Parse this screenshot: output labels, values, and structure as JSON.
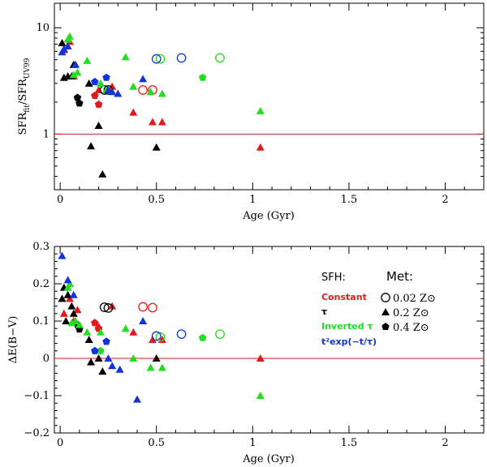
{
  "colors": {
    "constant": "#e31a1c",
    "tau": "#000000",
    "inverted_tau": "#22dd22",
    "t2exp": "#1133dd",
    "reference_line": "#e31a1c"
  },
  "legend": {
    "sfh_title": "SFH:",
    "met_title": "Met:",
    "sfh_entries": [
      {
        "label": "Constant",
        "series": "constant"
      },
      {
        "label": "τ",
        "series": "tau"
      },
      {
        "label": "Inverted τ",
        "series": "inverted_tau"
      },
      {
        "label": "t²exp(−t/τ)",
        "series": "t2exp"
      }
    ],
    "met_entries": [
      {
        "value": "0.02",
        "unit": "Z⊙",
        "marker": "circle"
      },
      {
        "value": "0.2",
        "unit": "Z⊙",
        "marker": "triangle"
      },
      {
        "value": "0.4",
        "unit": "Z⊙",
        "marker": "pentagon"
      }
    ]
  },
  "chart_data": [
    {
      "type": "scatter",
      "yscale": "log",
      "xlabel": "Age (Gyr)",
      "ylabel_main": "SFR",
      "ylabel_sub1": "fit",
      "ylabel_mid": "/SFR",
      "ylabel_sub2": "UV99",
      "xlim": [
        -0.03,
        2.2
      ],
      "ylim": [
        0.3,
        17
      ],
      "xticks": [
        0,
        0.5,
        1,
        1.5,
        2
      ],
      "xtick_labels": [
        "0",
        "0.5",
        "1",
        "1.5",
        "2"
      ],
      "yticks": [
        1,
        10
      ],
      "ytick_labels": [
        "1",
        "10"
      ],
      "reference_y": 1,
      "series": [
        {
          "name": "constant",
          "marker": "circle",
          "points": [
            [
              0.43,
              2.6
            ],
            [
              0.48,
              2.6
            ]
          ]
        },
        {
          "name": "constant",
          "marker": "triangle",
          "points": [
            [
              0.02,
              6.2
            ],
            [
              0.05,
              7.4
            ],
            [
              0.07,
              3.5
            ],
            [
              0.2,
              2.6
            ],
            [
              0.27,
              2.8
            ],
            [
              0.38,
              1.6
            ],
            [
              0.48,
              1.3
            ],
            [
              0.53,
              1.3
            ],
            [
              1.04,
              0.75
            ]
          ]
        },
        {
          "name": "constant",
          "marker": "pentagon",
          "points": [
            [
              0.18,
              2.3
            ],
            [
              0.2,
              1.9
            ]
          ]
        },
        {
          "name": "tau",
          "marker": "circle",
          "points": [
            [
              0.23,
              2.6
            ],
            [
              0.25,
              2.6
            ]
          ]
        },
        {
          "name": "tau",
          "marker": "triangle",
          "points": [
            [
              0.01,
              7.2
            ],
            [
              0.02,
              3.4
            ],
            [
              0.04,
              3.5
            ],
            [
              0.06,
              3.5
            ],
            [
              0.07,
              4.5
            ],
            [
              0.15,
              3.0
            ],
            [
              0.16,
              0.77
            ],
            [
              0.2,
              1.2
            ],
            [
              0.22,
              0.42
            ],
            [
              0.5,
              0.75
            ]
          ]
        },
        {
          "name": "tau",
          "marker": "pentagon",
          "points": [
            [
              0.09,
              2.2
            ],
            [
              0.1,
              1.95
            ]
          ]
        },
        {
          "name": "inverted_tau",
          "marker": "circle",
          "points": [
            [
              0.52,
              5.1
            ],
            [
              0.83,
              5.2
            ]
          ]
        },
        {
          "name": "inverted_tau",
          "marker": "triangle",
          "points": [
            [
              0.04,
              7.8
            ],
            [
              0.05,
              8.3
            ],
            [
              0.07,
              3.6
            ],
            [
              0.09,
              3.8
            ],
            [
              0.14,
              4.9
            ],
            [
              0.21,
              3.0
            ],
            [
              0.24,
              2.6
            ],
            [
              0.34,
              5.3
            ],
            [
              0.38,
              2.8
            ],
            [
              0.47,
              2.5
            ],
            [
              0.53,
              2.4
            ],
            [
              1.04,
              1.65
            ]
          ]
        },
        {
          "name": "inverted_tau",
          "marker": "pentagon",
          "points": [
            [
              0.74,
              3.4
            ]
          ]
        },
        {
          "name": "t2exp",
          "marker": "circle",
          "points": [
            [
              0.5,
              5.1
            ],
            [
              0.63,
              5.2
            ]
          ]
        },
        {
          "name": "t2exp",
          "marker": "triangle",
          "points": [
            [
              0.01,
              5.9
            ],
            [
              0.02,
              6.3
            ],
            [
              0.04,
              6.7
            ],
            [
              0.08,
              4.5
            ],
            [
              0.25,
              2.6
            ],
            [
              0.27,
              2.5
            ],
            [
              0.3,
              2.4
            ],
            [
              0.43,
              3.3
            ]
          ]
        },
        {
          "name": "t2exp",
          "marker": "pentagon",
          "points": [
            [
              0.18,
              3.1
            ],
            [
              0.24,
              3.4
            ]
          ]
        }
      ]
    },
    {
      "type": "scatter",
      "yscale": "linear",
      "xlabel": "Age (Gyr)",
      "ylabel": "ΔE(B−V)",
      "xlim": [
        -0.03,
        2.2
      ],
      "ylim": [
        -0.2,
        0.3
      ],
      "xticks": [
        0,
        0.5,
        1,
        1.5,
        2
      ],
      "xtick_labels": [
        "0",
        "0.5",
        "1",
        "1.5",
        "2"
      ],
      "yticks": [
        -0.2,
        -0.1,
        0,
        0.1,
        0.2,
        0.3
      ],
      "ytick_labels": [
        "−0.2",
        "−0.1",
        "0",
        "0.1",
        "0.2",
        "0.3"
      ],
      "reference_y": 0,
      "series": [
        {
          "name": "constant",
          "marker": "circle",
          "points": [
            [
              0.43,
              0.138
            ],
            [
              0.48,
              0.136
            ]
          ]
        },
        {
          "name": "constant",
          "marker": "triangle",
          "points": [
            [
              0.02,
              0.12
            ],
            [
              0.05,
              0.16
            ],
            [
              0.07,
              0.1
            ],
            [
              0.09,
              0.13
            ],
            [
              0.2,
              0.085
            ],
            [
              0.27,
              0.14
            ],
            [
              0.38,
              0.07
            ],
            [
              0.48,
              0.05
            ],
            [
              0.53,
              0.05
            ],
            [
              1.04,
              0.0
            ]
          ]
        },
        {
          "name": "constant",
          "marker": "pentagon",
          "points": [
            [
              0.18,
              0.095
            ],
            [
              0.2,
              0.08
            ]
          ]
        },
        {
          "name": "tau",
          "marker": "circle",
          "points": [
            [
              0.23,
              0.137
            ],
            [
              0.25,
              0.135
            ]
          ]
        },
        {
          "name": "tau",
          "marker": "triangle",
          "points": [
            [
              0.01,
              0.16
            ],
            [
              0.02,
              0.19
            ],
            [
              0.03,
              0.1
            ],
            [
              0.04,
              0.17
            ],
            [
              0.06,
              0.14
            ],
            [
              0.07,
              0.12
            ],
            [
              0.15,
              0.05
            ],
            [
              0.16,
              -0.01
            ],
            [
              0.2,
              0.0
            ],
            [
              0.22,
              -0.035
            ],
            [
              0.5,
              0.0
            ]
          ]
        },
        {
          "name": "tau",
          "marker": "pentagon",
          "points": [
            [
              0.09,
              0.09
            ],
            [
              0.1,
              0.078
            ]
          ]
        },
        {
          "name": "inverted_tau",
          "marker": "circle",
          "points": [
            [
              0.52,
              0.057
            ],
            [
              0.83,
              0.065
            ]
          ]
        },
        {
          "name": "inverted_tau",
          "marker": "triangle",
          "points": [
            [
              0.04,
              0.19
            ],
            [
              0.05,
              0.2
            ],
            [
              0.06,
              0.095
            ],
            [
              0.08,
              0.1
            ],
            [
              0.1,
              0.09
            ],
            [
              0.14,
              0.07
            ],
            [
              0.21,
              0.07
            ],
            [
              0.34,
              0.08
            ],
            [
              0.38,
              0.0
            ],
            [
              0.47,
              -0.025
            ],
            [
              0.53,
              -0.025
            ],
            [
              1.04,
              -0.1
            ]
          ]
        },
        {
          "name": "inverted_tau",
          "marker": "pentagon",
          "points": [
            [
              0.21,
              0.02
            ],
            [
              0.74,
              0.055
            ]
          ]
        },
        {
          "name": "t2exp",
          "marker": "circle",
          "points": [
            [
              0.5,
              0.06
            ],
            [
              0.63,
              0.065
            ]
          ]
        },
        {
          "name": "t2exp",
          "marker": "triangle",
          "points": [
            [
              0.01,
              0.275
            ],
            [
              0.04,
              0.21
            ],
            [
              0.07,
              0.17
            ],
            [
              0.25,
              0.0
            ],
            [
              0.27,
              -0.02
            ],
            [
              0.31,
              -0.03
            ],
            [
              0.4,
              -0.11
            ],
            [
              0.43,
              0.1
            ]
          ]
        },
        {
          "name": "t2exp",
          "marker": "pentagon",
          "points": [
            [
              0.18,
              0.02
            ],
            [
              0.24,
              0.045
            ]
          ]
        }
      ]
    }
  ]
}
